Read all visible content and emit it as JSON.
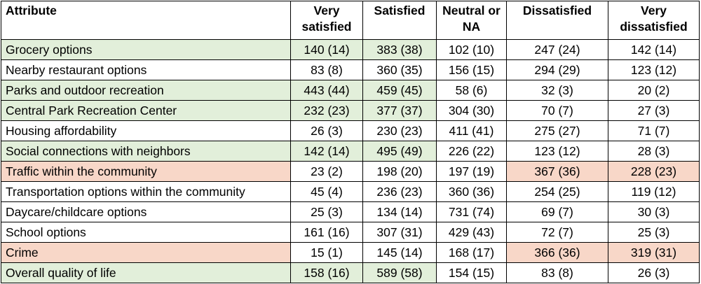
{
  "headers": [
    "Attribute",
    "Very satisfied",
    "Satisfied",
    "Neutral or NA",
    "Dissatisfied",
    "Very dissatisfied"
  ],
  "rows": [
    {
      "cells": [
        "Grocery options",
        "140 (14)",
        "383 (38)",
        "102 (10)",
        "247 (24)",
        "142 (14)"
      ],
      "highlight": [
        "g",
        "g",
        "g",
        "",
        "",
        ""
      ]
    },
    {
      "cells": [
        "Nearby restaurant options",
        "83 (8)",
        "360 (35)",
        "156 (15)",
        "294 (29)",
        "123 (12)"
      ],
      "highlight": [
        "",
        "",
        "",
        "",
        "",
        ""
      ]
    },
    {
      "cells": [
        "Parks and outdoor recreation",
        "443 (44)",
        "459 (45)",
        "58 (6)",
        "32 (3)",
        "20 (2)"
      ],
      "highlight": [
        "g",
        "g",
        "g",
        "",
        "",
        ""
      ]
    },
    {
      "cells": [
        "Central Park Recreation Center",
        "232 (23)",
        "377 (37)",
        "304 (30)",
        "70 (7)",
        "27 (3)"
      ],
      "highlight": [
        "g",
        "g",
        "g",
        "",
        "",
        ""
      ]
    },
    {
      "cells": [
        "Housing affordability",
        "26 (3)",
        "230 (23)",
        "411 (41)",
        "275 (27)",
        "71 (7)"
      ],
      "highlight": [
        "",
        "",
        "",
        "",
        "",
        ""
      ]
    },
    {
      "cells": [
        "Social connections with neighbors",
        "142 (14)",
        "495 (49)",
        "226 (22)",
        "123 (12)",
        "28 (3)"
      ],
      "highlight": [
        "g",
        "g",
        "g",
        "",
        "",
        ""
      ]
    },
    {
      "cells": [
        "Traffic within the community",
        "23 (2)",
        "198 (20)",
        "197 (19)",
        "367 (36)",
        "228 (23)"
      ],
      "highlight": [
        "r",
        "",
        "",
        "",
        "r",
        "r"
      ]
    },
    {
      "cells": [
        "Transportation options within the community",
        "45 (4)",
        "236 (23)",
        "360 (36)",
        "254 (25)",
        "119 (12)"
      ],
      "highlight": [
        "",
        "",
        "",
        "",
        "",
        ""
      ]
    },
    {
      "cells": [
        "Daycare/childcare options",
        "25 (3)",
        "134 (14)",
        "731 (74)",
        "69 (7)",
        "30 (3)"
      ],
      "highlight": [
        "",
        "",
        "",
        "",
        "",
        ""
      ]
    },
    {
      "cells": [
        "School options",
        "161 (16)",
        "307 (31)",
        "429 (43)",
        "72 (7)",
        "25 (3)"
      ],
      "highlight": [
        "",
        "",
        "",
        "",
        "",
        ""
      ]
    },
    {
      "cells": [
        "Crime",
        "15 (1)",
        "145 (14)",
        "168 (17)",
        "366 (36)",
        "319 (31)"
      ],
      "highlight": [
        "r",
        "",
        "",
        "",
        "r",
        "r"
      ]
    },
    {
      "cells": [
        "Overall quality of life",
        "158 (16)",
        "589 (58)",
        "154 (15)",
        "83 (8)",
        "26 (3)"
      ],
      "highlight": [
        "g",
        "g",
        "g",
        "",
        "",
        ""
      ]
    }
  ],
  "colors": {
    "positive_fill": "#e2efda",
    "negative_fill": "#f8d7c8",
    "border": "#000000"
  }
}
